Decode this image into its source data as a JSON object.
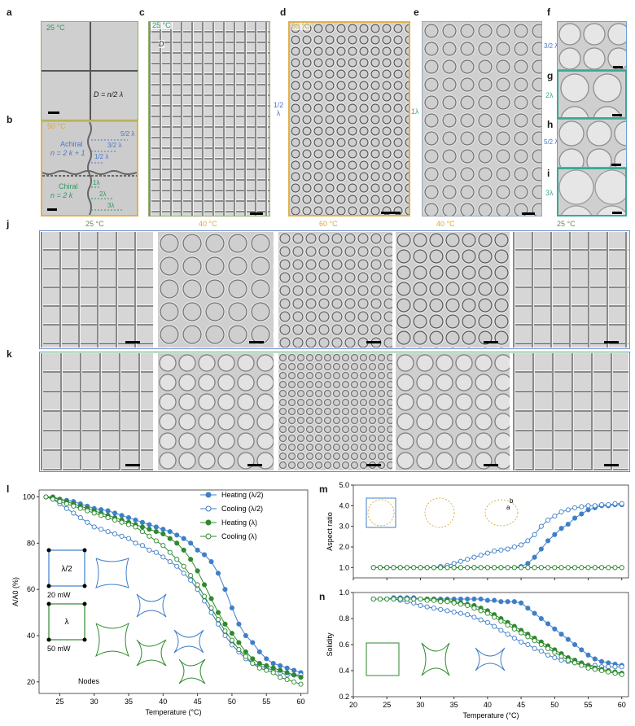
{
  "panels": {
    "a": {
      "label": "a",
      "temp": "25 °C",
      "formula": "D = n/2 λ"
    },
    "b": {
      "label": "b",
      "temp": "50 °C",
      "achiral_title": "Achiral",
      "achiral_eq": "n = 2 k + 1",
      "chiral_title": "Chiral",
      "chiral_eq": "n = 2 k",
      "achiral_marks": [
        "1/2 λ",
        "3/2 λ",
        "5/2 λ"
      ],
      "chiral_marks": [
        "1λ",
        "2λ",
        "3λ"
      ]
    },
    "c": {
      "label": "c",
      "temp": "25 °C",
      "d_label": "D",
      "side_label": "1/2 λ"
    },
    "d": {
      "label": "d",
      "temp": "50 °C"
    },
    "e": {
      "label": "e",
      "side_label": "1λ"
    },
    "f": {
      "label": "f",
      "side_label": "3/2 λ"
    },
    "g": {
      "label": "g",
      "side_label": "2λ"
    },
    "h": {
      "label": "h",
      "side_label": "5/2 λ"
    },
    "i": {
      "label": "i",
      "side_label": "3λ"
    },
    "j": {
      "label": "j",
      "temps": [
        "25 °C",
        "40 °C",
        "60 °C",
        "40 °C",
        "25 °C"
      ]
    },
    "k": {
      "label": "k"
    }
  },
  "panel_l": {
    "label": "l",
    "ylabel": "A/A0 (%)",
    "xlabel": "Temperature (°C)",
    "power1": "20 mW",
    "power2": "50 mW",
    "cell1": "λ/2",
    "cell2": "λ",
    "nodes": "Nodes"
  },
  "panel_m": {
    "label": "m",
    "ylabel": "Aspect ratio",
    "a_lbl": "a",
    "b_lbl": "b"
  },
  "panel_n": {
    "label": "n",
    "ylabel": "Solidity",
    "xlabel": "Temperature (°C)"
  },
  "legend": [
    "Heating (λ/2)",
    "Cooling (λ/2)",
    "Heating (λ)",
    "Cooling (λ)"
  ],
  "colors": {
    "blue": "#3f7fc8",
    "green": "#2e8a2e",
    "yellow": "#d8b14a"
  },
  "chart_data": [
    {
      "type": "line",
      "title": "",
      "xlabel": "Temperature (°C)",
      "ylabel": "A/A0 (%)",
      "xlim": [
        22,
        61
      ],
      "ylim": [
        15,
        103
      ],
      "xticks": [
        25,
        30,
        35,
        40,
        45,
        50,
        55,
        60
      ],
      "yticks": [
        20,
        40,
        60,
        80,
        100
      ],
      "x": [
        23,
        24,
        25,
        26,
        27,
        28,
        29,
        30,
        31,
        32,
        33,
        34,
        35,
        36,
        37,
        38,
        39,
        40,
        41,
        42,
        43,
        44,
        45,
        46,
        47,
        48,
        49,
        50,
        51,
        52,
        53,
        54,
        55,
        56,
        57,
        58,
        59,
        60
      ],
      "series": [
        {
          "name": "Heating (λ/2)",
          "style": "filled",
          "color": "#3f7fc8",
          "values": [
            100,
            99.5,
            99,
            98.5,
            98,
            97,
            96,
            95,
            94.5,
            94,
            93,
            92,
            91,
            90,
            89,
            88,
            87,
            86,
            85,
            83.5,
            82,
            80,
            77,
            75,
            72,
            67,
            60,
            52,
            45,
            40,
            37,
            33,
            30,
            28,
            27,
            26,
            25,
            24
          ]
        },
        {
          "name": "Cooling (λ/2)",
          "style": "open",
          "color": "#3f7fc8",
          "values": [
            100,
            99,
            97,
            95,
            93,
            91,
            89,
            87,
            86,
            85,
            84,
            83,
            82,
            80,
            79,
            77,
            76,
            74,
            72,
            70,
            67,
            64,
            60,
            55,
            50,
            45,
            40,
            36,
            33,
            30,
            28,
            27,
            26,
            25,
            24,
            23,
            23,
            23
          ]
        },
        {
          "name": "Heating (λ)",
          "style": "filled",
          "color": "#2e8a2e",
          "values": [
            100,
            100,
            99,
            98,
            97,
            96,
            95,
            94,
            93,
            92,
            91,
            90,
            89,
            88,
            87,
            86,
            85,
            84,
            82,
            80,
            77,
            73,
            68,
            62,
            56,
            50,
            45,
            41,
            37,
            33,
            30,
            28,
            27,
            26,
            25,
            24,
            23,
            22
          ]
        },
        {
          "name": "Cooling (λ)",
          "style": "open",
          "color": "#2e8a2e",
          "values": [
            100,
            99,
            98,
            97,
            96,
            95,
            94,
            93,
            92,
            91,
            90,
            89,
            88,
            87,
            85,
            83,
            81,
            79,
            76,
            73,
            70,
            66,
            62,
            57,
            52,
            47,
            42,
            38,
            34,
            31,
            28,
            26,
            25,
            24,
            22,
            21,
            20,
            19
          ]
        }
      ]
    },
    {
      "type": "line",
      "title": "",
      "xlabel": "",
      "ylabel": "Aspect ratio",
      "xlim": [
        20,
        61
      ],
      "ylim": [
        0.5,
        5.0
      ],
      "xticks": [
        20,
        25,
        30,
        35,
        40,
        45,
        50,
        55,
        60
      ],
      "yticks": [
        1.0,
        2.0,
        3.0,
        4.0,
        5.0
      ],
      "x": [
        23,
        24,
        25,
        26,
        27,
        28,
        29,
        30,
        31,
        32,
        33,
        34,
        35,
        36,
        37,
        38,
        39,
        40,
        41,
        42,
        43,
        44,
        45,
        46,
        47,
        48,
        49,
        50,
        51,
        52,
        53,
        54,
        55,
        56,
        57,
        58,
        59,
        60
      ],
      "series": [
        {
          "name": "Heating (λ/2)",
          "style": "filled",
          "color": "#3f7fc8",
          "values": [
            1,
            1,
            1,
            1,
            1,
            1,
            1,
            1,
            1,
            1,
            1,
            1,
            1,
            1,
            1,
            1,
            1,
            1,
            1,
            1,
            1,
            1,
            1.05,
            1.2,
            1.5,
            1.9,
            2.3,
            2.6,
            2.9,
            3.1,
            3.4,
            3.6,
            3.8,
            3.9,
            4.0,
            4.0,
            4.05,
            4.05
          ]
        },
        {
          "name": "Cooling (λ/2)",
          "style": "open",
          "color": "#3f7fc8",
          "values": [
            1,
            1,
            1,
            1,
            1,
            1,
            1,
            1,
            1,
            1,
            1.05,
            1.1,
            1.2,
            1.3,
            1.4,
            1.5,
            1.6,
            1.7,
            1.8,
            1.85,
            1.9,
            2.0,
            2.1,
            2.3,
            2.6,
            3.0,
            3.3,
            3.5,
            3.7,
            3.8,
            3.9,
            3.95,
            4.0,
            4.0,
            4.05,
            4.05,
            4.1,
            4.1
          ]
        },
        {
          "name": "Heating (λ)",
          "style": "filled",
          "color": "#2e8a2e",
          "values": [
            1,
            1,
            1,
            1,
            1,
            1,
            1,
            1,
            1,
            1,
            1,
            1,
            1,
            1,
            1,
            1,
            1,
            1,
            1,
            1,
            1,
            1,
            1,
            1,
            1,
            1,
            1,
            1,
            1,
            1,
            1,
            1,
            1,
            1,
            1,
            1,
            1,
            1
          ]
        },
        {
          "name": "Cooling (λ)",
          "style": "open",
          "color": "#2e8a2e",
          "values": [
            1,
            1,
            1,
            1,
            1,
            1,
            1,
            1,
            1,
            1,
            1,
            1,
            1,
            1,
            1,
            1,
            1,
            1,
            1,
            1,
            1,
            1,
            1,
            1,
            1,
            1,
            1,
            1,
            1,
            1,
            1,
            1,
            1,
            1,
            1,
            1,
            1,
            1
          ]
        }
      ]
    },
    {
      "type": "line",
      "title": "",
      "xlabel": "Temperature (°C)",
      "ylabel": "Solidity",
      "xlim": [
        20,
        61
      ],
      "ylim": [
        0.2,
        1.0
      ],
      "xticks": [
        20,
        25,
        30,
        35,
        40,
        45,
        50,
        55,
        60
      ],
      "yticks": [
        0.2,
        0.4,
        0.6,
        0.8,
        1.0
      ],
      "x": [
        23,
        24,
        25,
        26,
        27,
        28,
        29,
        30,
        31,
        32,
        33,
        34,
        35,
        36,
        37,
        38,
        39,
        40,
        41,
        42,
        43,
        44,
        45,
        46,
        47,
        48,
        49,
        50,
        51,
        52,
        53,
        54,
        55,
        56,
        57,
        58,
        59,
        60
      ],
      "series": [
        {
          "name": "Heating (λ/2)",
          "style": "filled",
          "color": "#3f7fc8",
          "values": [
            0.95,
            0.95,
            0.95,
            0.96,
            0.96,
            0.96,
            0.96,
            0.95,
            0.95,
            0.95,
            0.95,
            0.95,
            0.95,
            0.95,
            0.95,
            0.95,
            0.95,
            0.94,
            0.94,
            0.93,
            0.93,
            0.93,
            0.92,
            0.88,
            0.84,
            0.8,
            0.76,
            0.72,
            0.68,
            0.64,
            0.6,
            0.56,
            0.52,
            0.49,
            0.47,
            0.46,
            0.45,
            0.44
          ]
        },
        {
          "name": "Cooling (λ/2)",
          "style": "open",
          "color": "#3f7fc8",
          "values": [
            0.95,
            0.95,
            0.95,
            0.95,
            0.94,
            0.93,
            0.92,
            0.9,
            0.89,
            0.88,
            0.87,
            0.86,
            0.85,
            0.84,
            0.83,
            0.81,
            0.79,
            0.77,
            0.74,
            0.71,
            0.68,
            0.65,
            0.62,
            0.6,
            0.57,
            0.55,
            0.52,
            0.5,
            0.48,
            0.47,
            0.46,
            0.45,
            0.44,
            0.44,
            0.43,
            0.43,
            0.43,
            0.43
          ]
        },
        {
          "name": "Heating (λ)",
          "style": "filled",
          "color": "#2e8a2e",
          "values": [
            0.95,
            0.95,
            0.95,
            0.95,
            0.95,
            0.95,
            0.95,
            0.95,
            0.95,
            0.95,
            0.94,
            0.94,
            0.93,
            0.92,
            0.91,
            0.9,
            0.88,
            0.86,
            0.83,
            0.8,
            0.77,
            0.74,
            0.71,
            0.68,
            0.65,
            0.62,
            0.59,
            0.56,
            0.53,
            0.5,
            0.48,
            0.46,
            0.44,
            0.42,
            0.41,
            0.4,
            0.39,
            0.38
          ]
        },
        {
          "name": "Cooling (λ)",
          "style": "open",
          "color": "#2e8a2e",
          "values": [
            0.95,
            0.95,
            0.95,
            0.95,
            0.95,
            0.95,
            0.95,
            0.95,
            0.94,
            0.94,
            0.93,
            0.93,
            0.92,
            0.91,
            0.9,
            0.88,
            0.86,
            0.84,
            0.81,
            0.78,
            0.75,
            0.72,
            0.69,
            0.66,
            0.63,
            0.6,
            0.57,
            0.54,
            0.51,
            0.48,
            0.46,
            0.44,
            0.42,
            0.41,
            0.4,
            0.39,
            0.38,
            0.37
          ]
        }
      ]
    }
  ]
}
